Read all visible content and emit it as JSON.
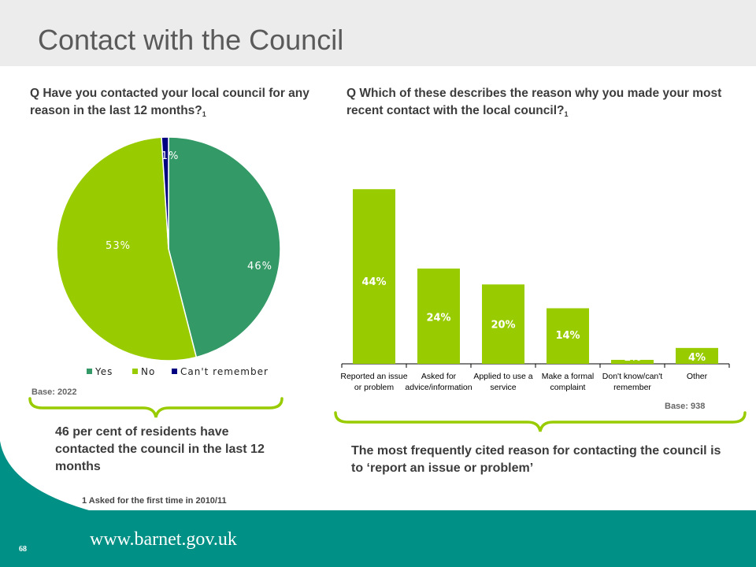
{
  "page": {
    "title": "Contact with the Council",
    "page_number": "68",
    "website": "www.barnet.gov.uk",
    "footnote": "1 Asked for the first time in 2010/11"
  },
  "left_panel": {
    "question": "Q Have you contacted your local council for any reason in the last 12 months?",
    "question_footnote_mark": "1",
    "base": "Base: 2022",
    "summary": "46 per cent of residents have contacted the council in the last 12 months"
  },
  "right_panel": {
    "question": "Q Which of these describes the reason why you made your most recent contact with the local council?",
    "question_footnote_mark": "1",
    "base": "Base: 938",
    "summary": "The most frequently cited reason for contacting the council is to ‘report an issue or problem’"
  },
  "colors": {
    "yes": "#339966",
    "no": "#99cc00",
    "cant_remember": "#000080",
    "bar": "#99cc00",
    "footer": "#009085",
    "brace": "#99cc00"
  },
  "chart_data": [
    {
      "type": "pie",
      "title": "",
      "categories": [
        "Yes",
        "No",
        "Can't remember"
      ],
      "values": [
        46,
        53,
        1
      ],
      "value_labels": [
        "46%",
        "53%",
        "1%"
      ],
      "legend": "bottom"
    },
    {
      "type": "bar",
      "title": "",
      "categories": [
        [
          "Reported an issue",
          "or problem"
        ],
        [
          "Asked for",
          "advice/information"
        ],
        [
          "Applied to use a",
          "service"
        ],
        [
          "Make a formal",
          "complaint"
        ],
        [
          "Don't know/can't",
          "remember"
        ],
        [
          "Other"
        ]
      ],
      "values": [
        44,
        24,
        20,
        14,
        1,
        4
      ],
      "value_labels": [
        "44%",
        "24%",
        "20%",
        "14%",
        "1%",
        "4%"
      ],
      "ylim": [
        0,
        50
      ],
      "grid": false
    }
  ]
}
